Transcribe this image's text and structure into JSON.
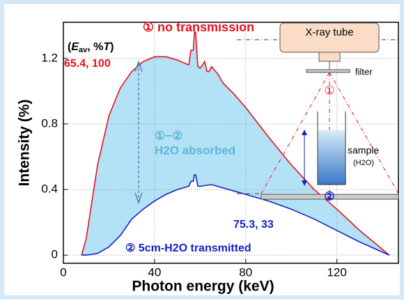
{
  "chart_data": {
    "type": "area_between",
    "title": "① no transmission",
    "ylabel": "Intensity (%)",
    "xlabel": "Photon energy (keV)",
    "legend_label_parts": [
      "(",
      "E",
      "av",
      ", %",
      "T",
      ")"
    ],
    "series": [
      {
        "name": "① no transmission",
        "color": "#e8101a",
        "x": [
          8,
          10,
          15,
          20,
          25,
          30,
          35,
          40,
          45,
          50,
          55,
          56,
          57,
          57.5,
          58,
          59,
          60,
          62,
          63,
          64,
          65,
          68,
          70,
          75,
          80,
          90,
          100,
          110,
          120,
          130,
          143
        ],
        "values": [
          0,
          0.1,
          0.55,
          0.85,
          1.02,
          1.12,
          1.18,
          1.21,
          1.21,
          1.19,
          1.16,
          1.25,
          1.25,
          1.36,
          1.36,
          1.15,
          1.14,
          1.18,
          1.12,
          1.12,
          1.15,
          1.1,
          1.05,
          0.98,
          0.9,
          0.72,
          0.55,
          0.4,
          0.28,
          0.15,
          0
        ]
      },
      {
        "name": "② 5cm-H2O transmitted",
        "color": "#1420c8",
        "x": [
          8,
          10,
          15,
          20,
          25,
          30,
          35,
          40,
          45,
          50,
          55,
          56,
          57,
          57.5,
          58,
          59,
          60,
          65,
          70,
          75,
          80,
          90,
          100,
          110,
          120,
          130,
          143
        ],
        "values": [
          0,
          0,
          0.01,
          0.05,
          0.12,
          0.22,
          0.28,
          0.33,
          0.37,
          0.4,
          0.42,
          0.45,
          0.45,
          0.49,
          0.49,
          0.42,
          0.42,
          0.43,
          0.41,
          0.39,
          0.37,
          0.33,
          0.28,
          0.22,
          0.15,
          0.08,
          0
        ]
      }
    ],
    "fill_color": "#b3e2f7",
    "annotations": {
      "red_point": "65.4, 100",
      "blue_point": "75.3, 33",
      "diff": "①−②",
      "absorbed": "H2O absorbed"
    },
    "xlim": [
      0,
      147
    ],
    "ylim": [
      -0.05,
      1.42
    ],
    "xticks": [
      0,
      40,
      80,
      120
    ],
    "yticks": [
      0,
      0.4,
      0.8,
      1.2
    ],
    "grid": true
  },
  "diagram": {
    "tube": "X-ray tube",
    "filter": "filter",
    "beam_mark": "①",
    "sample": "sample",
    "sample_sub": "(H2O)",
    "detector_mark": "②"
  }
}
